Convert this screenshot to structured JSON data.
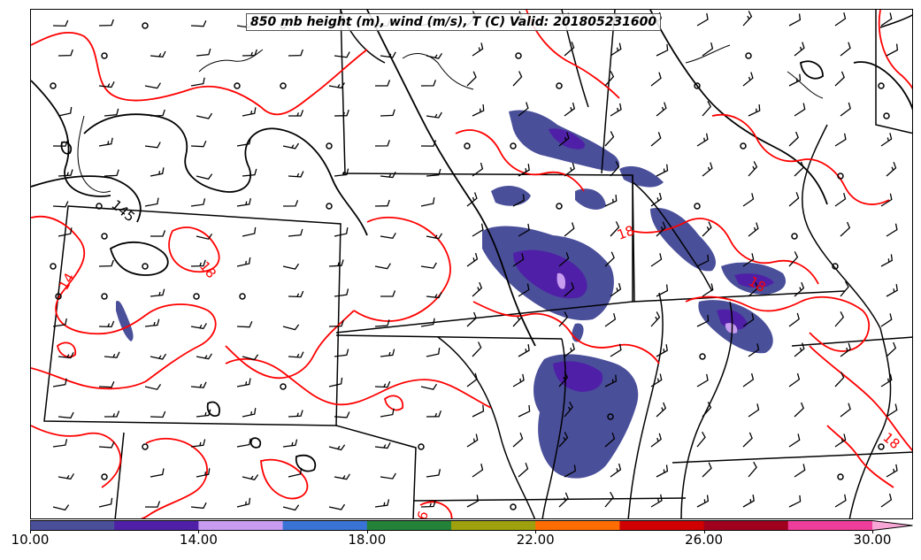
{
  "title": "850 mb height (m), wind (m/s), T (C) Valid: 201805231600",
  "contour_labels": {
    "height": [
      "145"
    ],
    "temperature": [
      "14",
      "18",
      "18",
      "18",
      "18",
      "6"
    ]
  },
  "colorbar": {
    "colors": [
      "#4a4f9a",
      "#4f20a7",
      "#c89cf0",
      "#3a73d6",
      "#238238",
      "#9ea00e",
      "#ff6d00",
      "#d00000",
      "#a0001e",
      "#ee3d9a"
    ],
    "extend_color": "#f7a6d6",
    "range": [
      10,
      30
    ],
    "tick_labels": [
      "10.00",
      "14.00",
      "18.00",
      "22.00",
      "26.00",
      "30.00"
    ]
  },
  "legend_colors": {
    "temperature_contour": "#ff0000",
    "height_contour": "#000000",
    "borders": "#000000",
    "wind_barbs": "#000000"
  }
}
